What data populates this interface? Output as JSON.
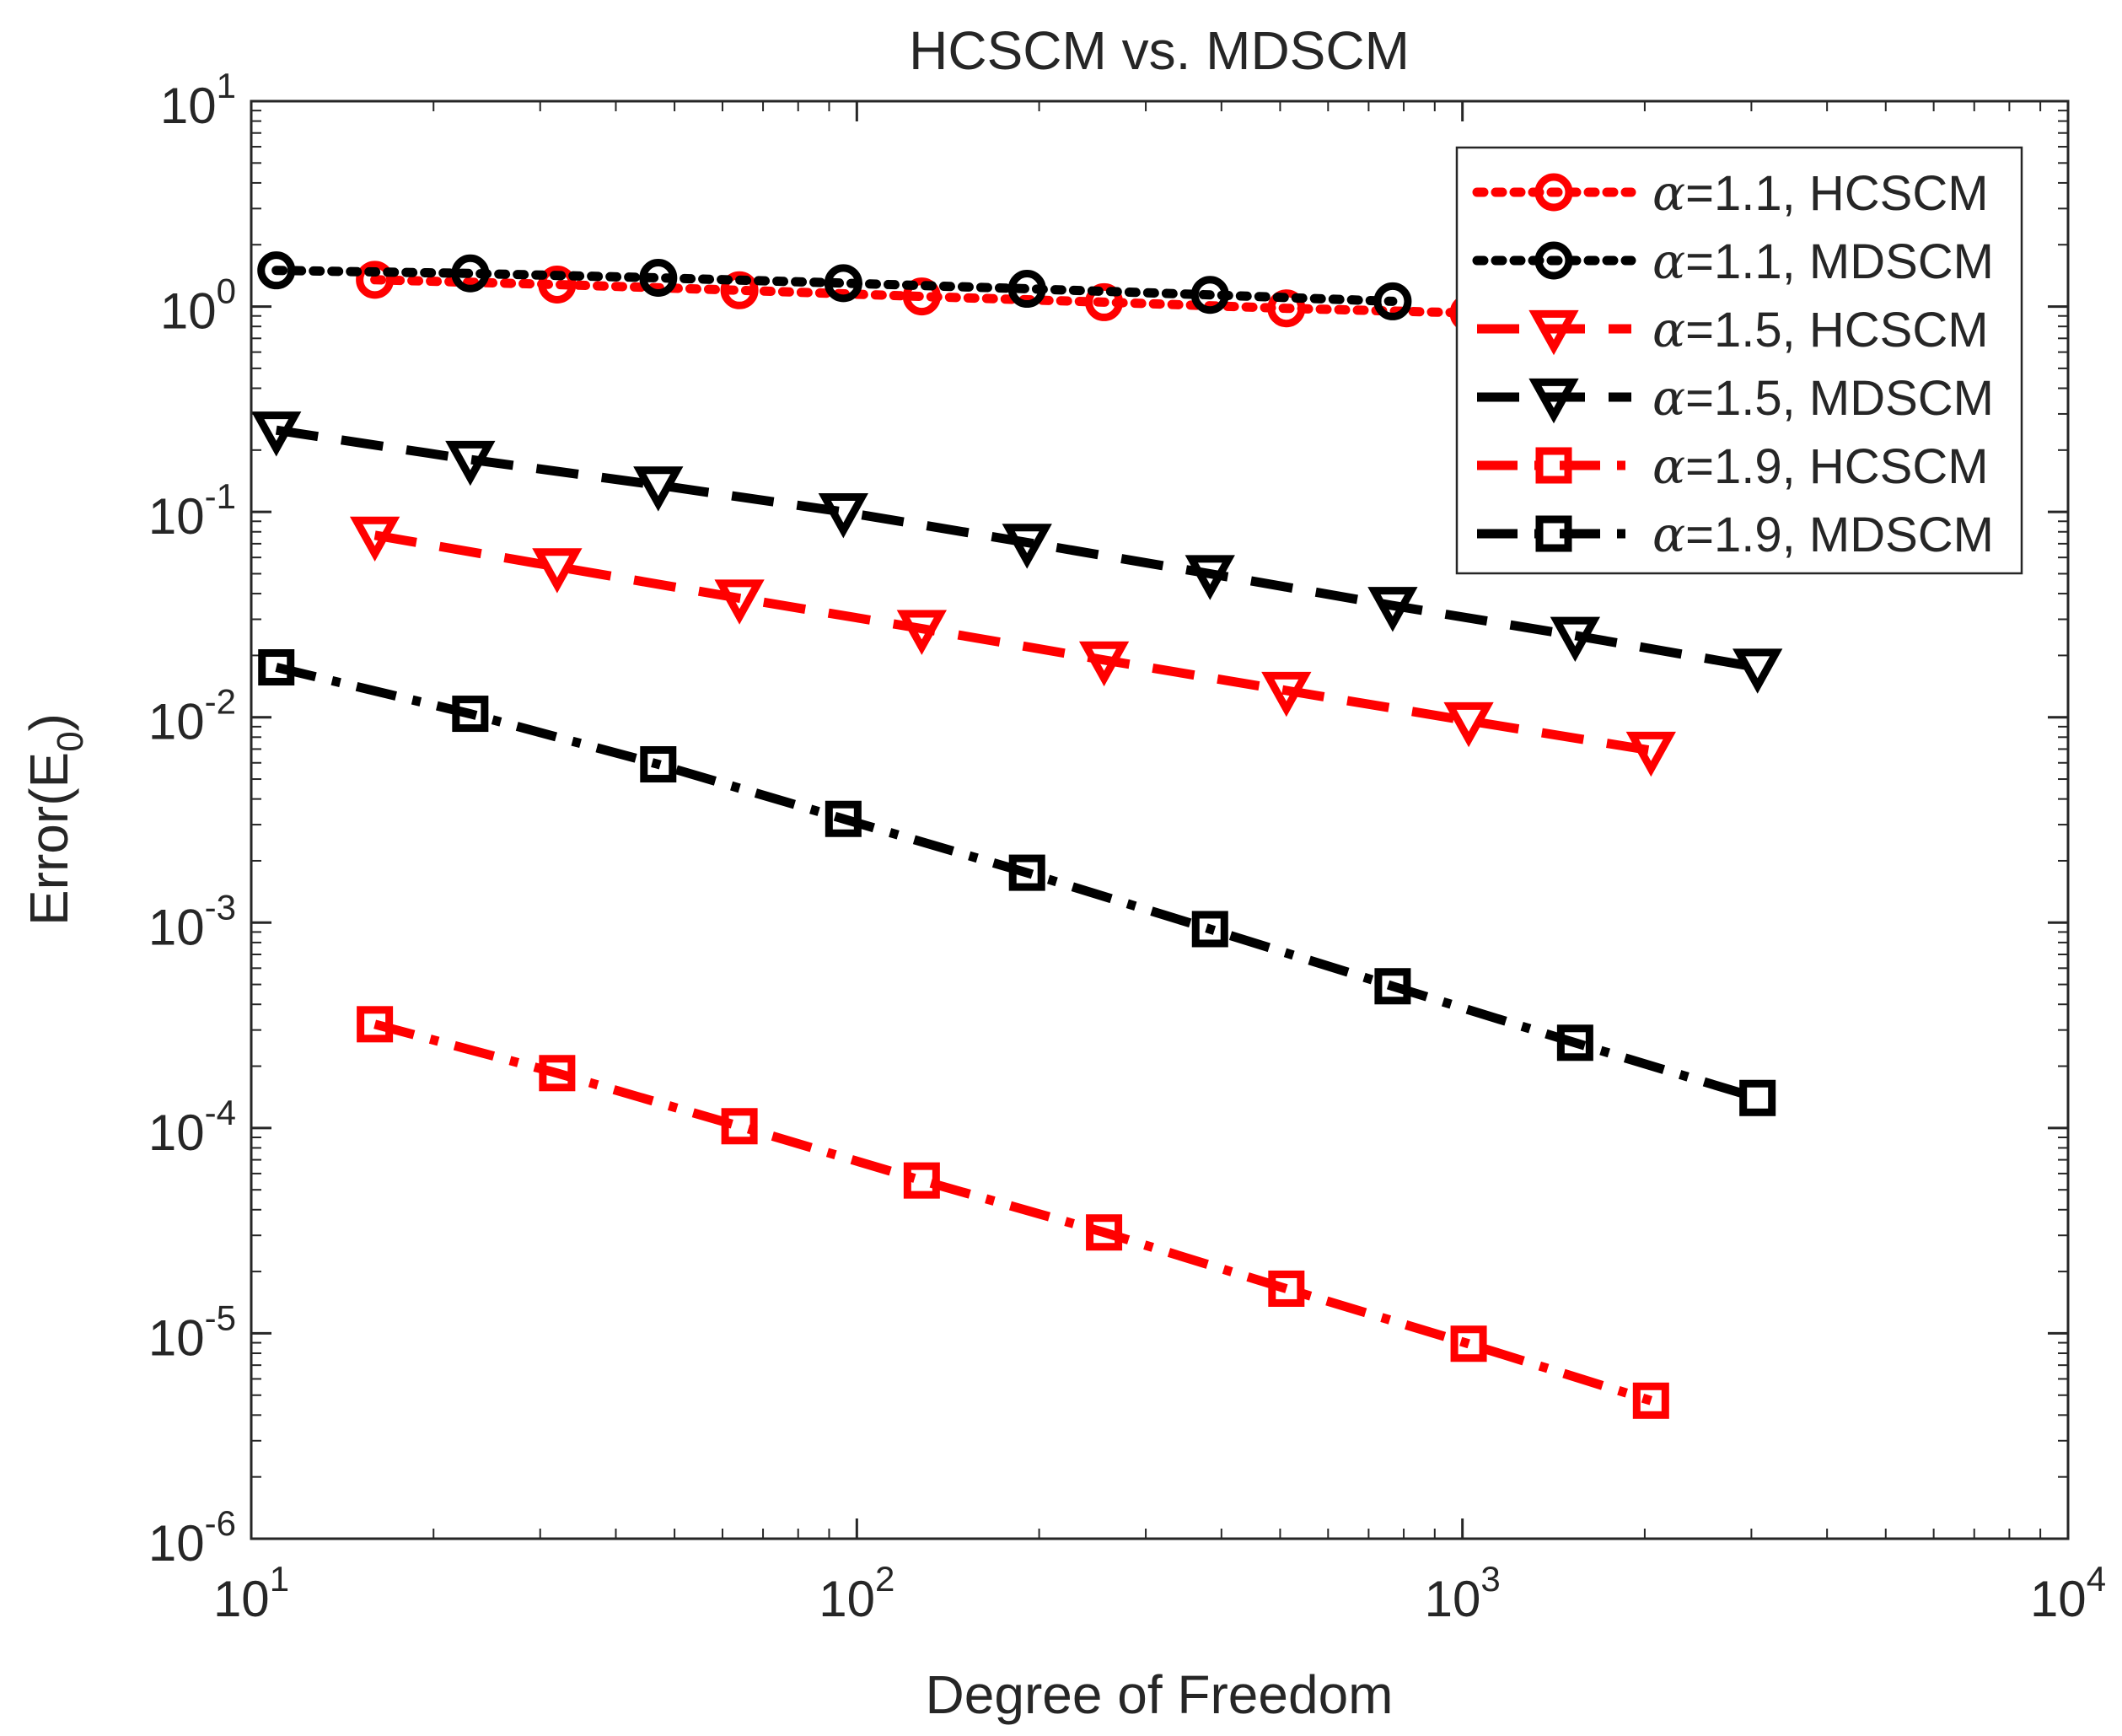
{
  "chart_data": {
    "type": "line",
    "title": "HCSCM vs. MDSCM",
    "xlabel": "Degree of Freedom",
    "ylabel": "Error(E",
    "ylabel_sub": "0",
    "ylabel_close": ")",
    "xscale": "log",
    "yscale": "log",
    "xlim": [
      10,
      10000
    ],
    "ylim": [
      1e-06,
      10
    ],
    "x_ticks": [
      {
        "value": 10,
        "base": "10",
        "exp": "1"
      },
      {
        "value": 100,
        "base": "10",
        "exp": "2"
      },
      {
        "value": 1000,
        "base": "10",
        "exp": "3"
      },
      {
        "value": 10000,
        "base": "10",
        "exp": "4"
      }
    ],
    "y_ticks": [
      {
        "value": 10,
        "base": "10",
        "exp": "1"
      },
      {
        "value": 1,
        "base": "10",
        "exp": "0"
      },
      {
        "value": 0.1,
        "base": "10",
        "exp": "-1"
      },
      {
        "value": 0.01,
        "base": "10",
        "exp": "-2"
      },
      {
        "value": 0.001,
        "base": "10",
        "exp": "-3"
      },
      {
        "value": 0.0001,
        "base": "10",
        "exp": "-4"
      },
      {
        "value": 1e-05,
        "base": "10",
        "exp": "-5"
      },
      {
        "value": 1e-06,
        "base": "10",
        "exp": "-6"
      }
    ],
    "grid": false,
    "legend_position": "top-right",
    "series": [
      {
        "name": "α=1.1, HCSCM",
        "legend_greek": "α",
        "legend_rest": "=1.1, HCSCM",
        "color": "#ff0000",
        "line_style": "dotted",
        "marker": "circle",
        "x": [
          16,
          32,
          64,
          128,
          256,
          512,
          1024
        ],
        "y": [
          1.35,
          1.28,
          1.2,
          1.12,
          1.05,
          0.98,
          0.93
        ]
      },
      {
        "name": "α=1.1, MDSCM",
        "legend_greek": "α",
        "legend_rest": "=1.1, MDSCM",
        "color": "#000000",
        "line_style": "dotted",
        "marker": "circle",
        "x": [
          11,
          23,
          47,
          95,
          191,
          383,
          767
        ],
        "y": [
          1.5,
          1.45,
          1.38,
          1.3,
          1.22,
          1.14,
          1.06
        ]
      },
      {
        "name": "α=1.5, HCSCM",
        "legend_greek": "α",
        "legend_rest": "=1.5, HCSCM",
        "color": "#ff0000",
        "line_style": "dashed",
        "marker": "triangle-down",
        "x": [
          16,
          32,
          64,
          128,
          256,
          512,
          1024,
          2048
        ],
        "y": [
          0.077,
          0.054,
          0.038,
          0.027,
          0.019,
          0.0135,
          0.0096,
          0.0069
        ]
      },
      {
        "name": "α=1.5, MDSCM",
        "legend_greek": "α",
        "legend_rest": "=1.5, MDSCM",
        "color": "#000000",
        "line_style": "dashed",
        "marker": "triangle-down",
        "x": [
          11,
          23,
          47,
          95,
          191,
          383,
          767,
          1535,
          3071
        ],
        "y": [
          0.25,
          0.18,
          0.135,
          0.1,
          0.071,
          0.05,
          0.035,
          0.025,
          0.0175
        ]
      },
      {
        "name": "α=1.9, HCSCM",
        "legend_greek": "α",
        "legend_rest": "=1.9, HCSCM",
        "color": "#ff0000",
        "line_style": "dashdot",
        "marker": "square",
        "x": [
          16,
          32,
          64,
          128,
          256,
          512,
          1024,
          2048
        ],
        "y": [
          0.00032,
          0.000185,
          0.000102,
          5.55e-05,
          3.1e-05,
          1.65e-05,
          8.9e-06,
          4.7e-06
        ]
      },
      {
        "name": "α=1.9, MDSCM",
        "legend_greek": "α",
        "legend_rest": "=1.9, MDSCM",
        "color": "#000000",
        "line_style": "dashdot",
        "marker": "square",
        "x": [
          11,
          23,
          47,
          95,
          191,
          383,
          767,
          1535,
          3071
        ],
        "y": [
          0.0175,
          0.0104,
          0.0059,
          0.0032,
          0.00175,
          0.00093,
          0.00049,
          0.00026,
          0.00014
        ]
      }
    ]
  }
}
